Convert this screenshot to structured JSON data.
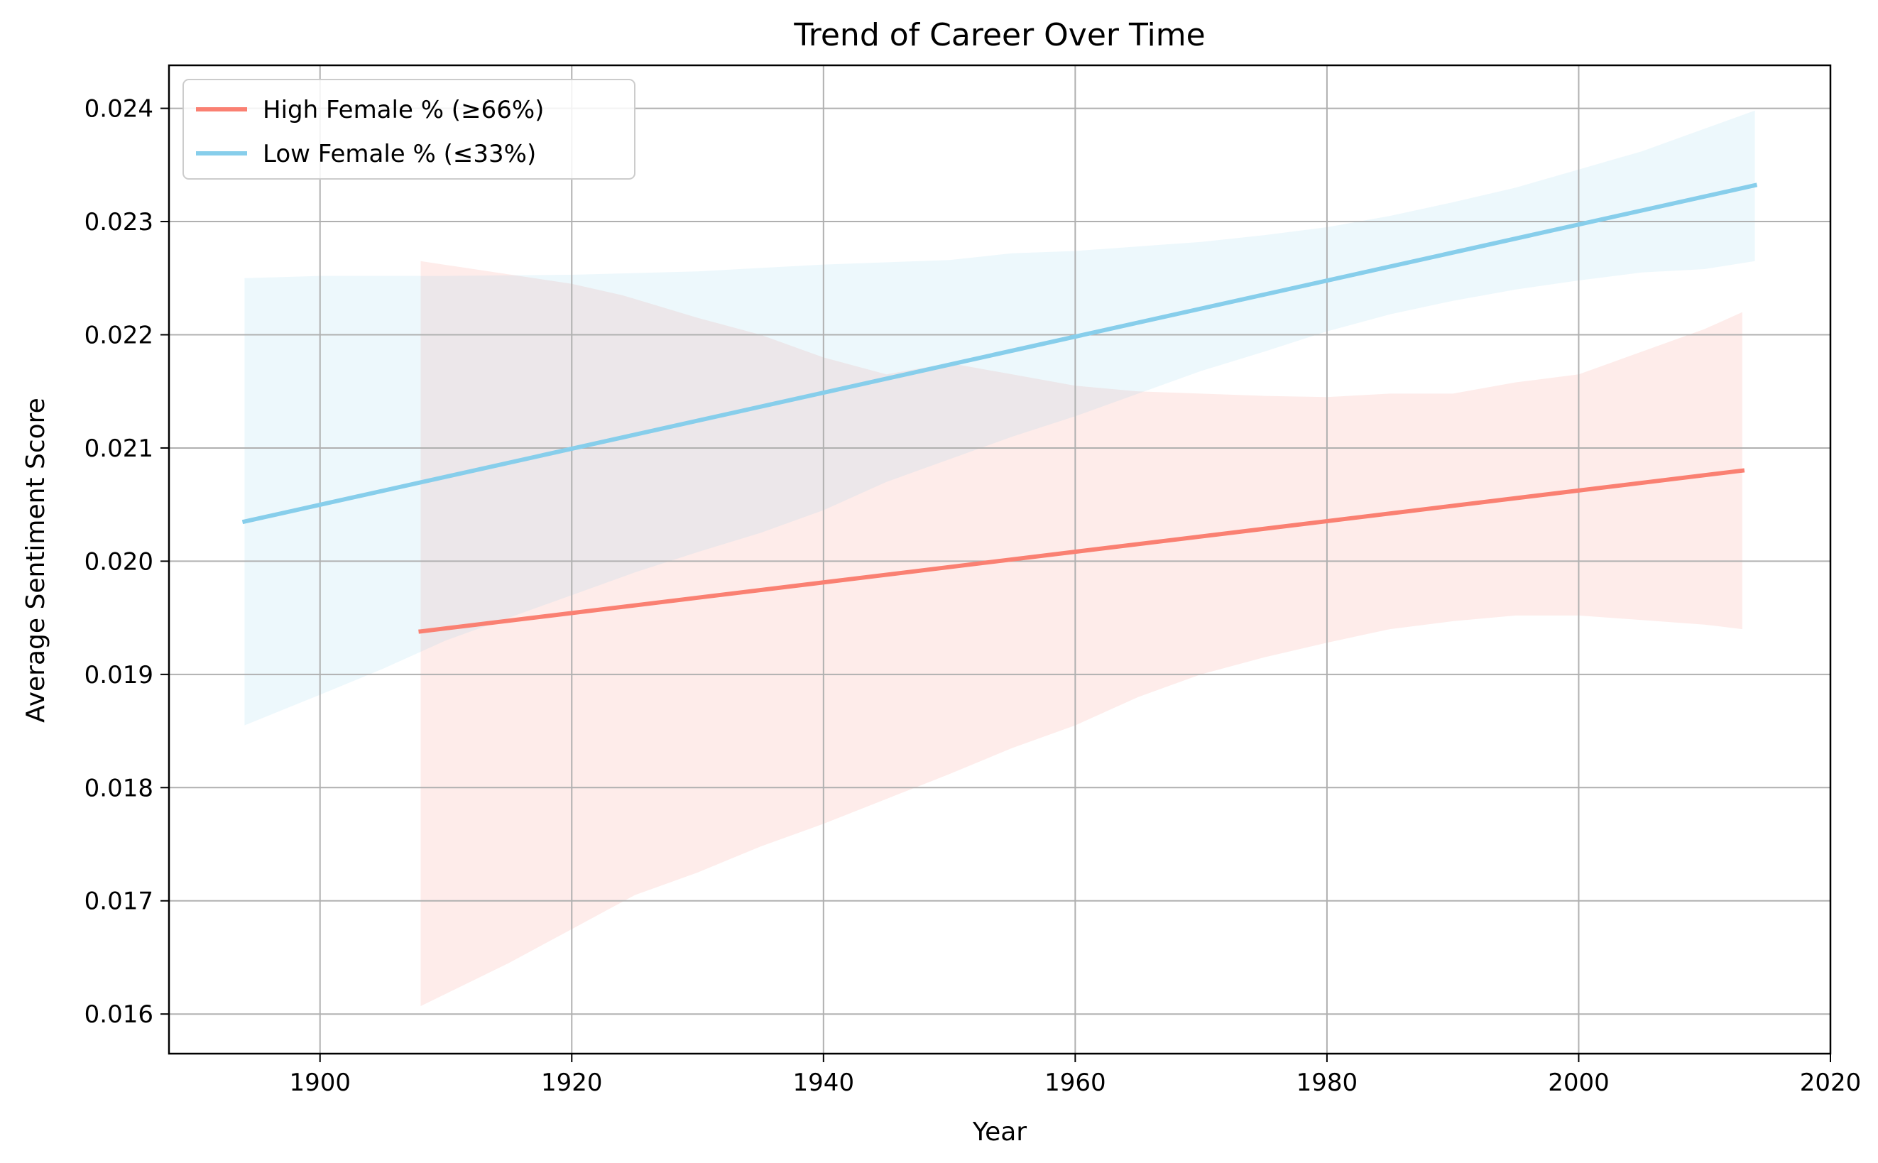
{
  "chart_data": {
    "type": "line",
    "title": "Trend of Career Over Time",
    "xlabel": "Year",
    "ylabel": "Average Sentiment Score",
    "xlim": [
      1888,
      2020
    ],
    "ylim": [
      0.01565,
      0.02438
    ],
    "x_ticks": [
      1900,
      1920,
      1940,
      1960,
      1980,
      2000,
      2020
    ],
    "x_tick_labels": [
      "1900",
      "1920",
      "1940",
      "1960",
      "1980",
      "2000",
      "2020"
    ],
    "y_ticks": [
      0.016,
      0.017,
      0.018,
      0.019,
      0.02,
      0.021,
      0.022,
      0.023,
      0.024
    ],
    "y_tick_labels": [
      "0.016",
      "0.017",
      "0.018",
      "0.019",
      "0.020",
      "0.021",
      "0.022",
      "0.023",
      "0.024"
    ],
    "grid": true,
    "legend_position": "top-left",
    "series": [
      {
        "name": "High Female % (≥66%)",
        "color": "#fa8072",
        "band_color": "#fde8e6",
        "line": [
          [
            1908,
            0.01938
          ],
          [
            2013,
            0.0208
          ]
        ],
        "band_upper": [
          [
            1908,
            0.02265
          ],
          [
            1920,
            0.02245
          ],
          [
            1924,
            0.02235
          ],
          [
            1930,
            0.02215
          ],
          [
            1935,
            0.022
          ],
          [
            1940,
            0.0218
          ],
          [
            1945,
            0.02165
          ],
          [
            1950,
            0.02175
          ],
          [
            1955,
            0.02165
          ],
          [
            1960,
            0.02155
          ],
          [
            1965,
            0.0215
          ],
          [
            1970,
            0.02148
          ],
          [
            1975,
            0.02146
          ],
          [
            1980,
            0.02145
          ],
          [
            1985,
            0.02148
          ],
          [
            1990,
            0.02148
          ],
          [
            1995,
            0.02158
          ],
          [
            2000,
            0.02165
          ],
          [
            2005,
            0.02185
          ],
          [
            2010,
            0.02205
          ],
          [
            2013,
            0.0222
          ]
        ],
        "band_lower": [
          [
            1908,
            0.01607
          ],
          [
            1915,
            0.01645
          ],
          [
            1920,
            0.01675
          ],
          [
            1925,
            0.01705
          ],
          [
            1930,
            0.01725
          ],
          [
            1935,
            0.01748
          ],
          [
            1940,
            0.01768
          ],
          [
            1945,
            0.0179
          ],
          [
            1950,
            0.01812
          ],
          [
            1955,
            0.01835
          ],
          [
            1960,
            0.01855
          ],
          [
            1965,
            0.0188
          ],
          [
            1970,
            0.019
          ],
          [
            1975,
            0.01915
          ],
          [
            1980,
            0.01928
          ],
          [
            1985,
            0.0194
          ],
          [
            1990,
            0.01947
          ],
          [
            1995,
            0.01952
          ],
          [
            2000,
            0.01952
          ],
          [
            2005,
            0.01948
          ],
          [
            2010,
            0.01944
          ],
          [
            2013,
            0.0194
          ]
        ]
      },
      {
        "name": "Low Female % (≤33%)",
        "color": "#87ceeb",
        "band_color": "#e2f2fa",
        "line": [
          [
            1894,
            0.02035
          ],
          [
            2014,
            0.02332
          ]
        ],
        "band_upper": [
          [
            1894,
            0.0225
          ],
          [
            1900,
            0.02252
          ],
          [
            1910,
            0.02252
          ],
          [
            1920,
            0.02253
          ],
          [
            1930,
            0.02256
          ],
          [
            1940,
            0.02262
          ],
          [
            1950,
            0.02266
          ],
          [
            1955,
            0.02272
          ],
          [
            1960,
            0.02274
          ],
          [
            1965,
            0.02278
          ],
          [
            1970,
            0.02282
          ],
          [
            1975,
            0.02288
          ],
          [
            1980,
            0.02295
          ],
          [
            1985,
            0.02305
          ],
          [
            1990,
            0.02317
          ],
          [
            1995,
            0.0233
          ],
          [
            2000,
            0.02346
          ],
          [
            2005,
            0.02362
          ],
          [
            2010,
            0.02382
          ],
          [
            2014,
            0.02398
          ]
        ],
        "band_lower": [
          [
            1894,
            0.01855
          ],
          [
            1900,
            0.01882
          ],
          [
            1905,
            0.01905
          ],
          [
            1910,
            0.0193
          ],
          [
            1915,
            0.0195
          ],
          [
            1920,
            0.0197
          ],
          [
            1925,
            0.0199
          ],
          [
            1930,
            0.02008
          ],
          [
            1935,
            0.02025
          ],
          [
            1940,
            0.02045
          ],
          [
            1945,
            0.0207
          ],
          [
            1950,
            0.0209
          ],
          [
            1955,
            0.0211
          ],
          [
            1960,
            0.02128
          ],
          [
            1965,
            0.02148
          ],
          [
            1970,
            0.02168
          ],
          [
            1975,
            0.02185
          ],
          [
            1980,
            0.02203
          ],
          [
            1985,
            0.02218
          ],
          [
            1990,
            0.0223
          ],
          [
            1995,
            0.0224
          ],
          [
            2000,
            0.02248
          ],
          [
            2005,
            0.02255
          ],
          [
            2010,
            0.02258
          ],
          [
            2014,
            0.02265
          ]
        ]
      }
    ]
  }
}
